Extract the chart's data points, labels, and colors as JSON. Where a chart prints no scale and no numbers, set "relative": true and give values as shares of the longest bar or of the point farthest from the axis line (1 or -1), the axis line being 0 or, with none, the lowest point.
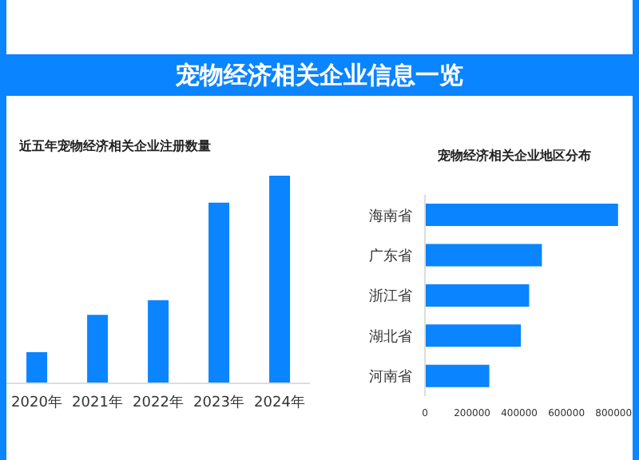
{
  "chart_data": [
    {
      "type": "bar",
      "title": "宠物经济相关企业信息一览",
      "subtitle": "近五年宠物经济相关企业注册数量",
      "categories": [
        "2020年",
        "2021年",
        "2022年",
        "2023年",
        "2024年"
      ],
      "relative": true,
      "color": "#0a84ff",
      "values": [
        0.15,
        0.33,
        0.4,
        0.87,
        1
      ]
    },
    {
      "type": "bar",
      "orientation": "horizontal",
      "title": "宠物经济相关企业地区分布",
      "categories": [
        "海南省",
        "广东省",
        "浙江省",
        "湖北省",
        "河南省"
      ],
      "color": "#0a84ff",
      "values": [
        819000,
        496000,
        442000,
        407000,
        273000
      ],
      "xlim": [
        0,
        840000
      ],
      "xticks": [
        0,
        200000,
        400000,
        600000,
        800000
      ]
    }
  ]
}
